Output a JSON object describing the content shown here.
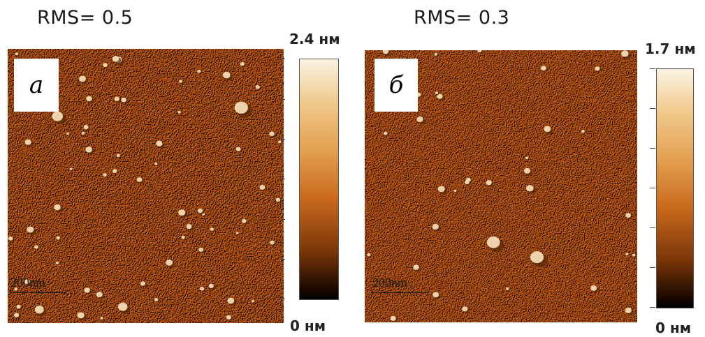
{
  "panels": [
    {
      "rms_label": "RMS= 0.5",
      "letter": "а",
      "scale_label": "200nm",
      "colorbar_max": "2.4 нм",
      "colorbar_min": "0 нм"
    },
    {
      "rms_label": "RMS= 0.3",
      "letter": "б",
      "scale_label": "200nm",
      "colorbar_max": "1.7 нм",
      "colorbar_min": "0 нм"
    }
  ],
  "colors": {
    "scan_base": "#d27f2e",
    "scan_highlight": "#f5c98e",
    "scan_shadow": "#6b3a12",
    "colorbar_top": "#fbf3e4",
    "colorbar_mid": "#d67a2a",
    "colorbar_bottom": "#000000"
  }
}
